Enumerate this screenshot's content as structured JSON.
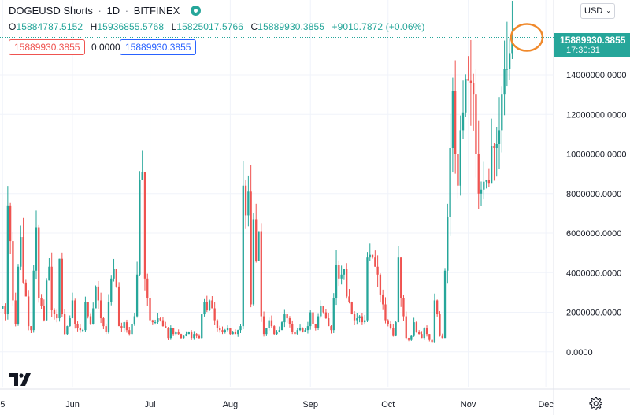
{
  "header": {
    "title": "DOGEUSD Shorts",
    "interval": "1D",
    "exchange": "BITFINEX",
    "sep": "·"
  },
  "ohlc": {
    "o_key": "O",
    "o_val": "15884787.5152",
    "h_key": "H",
    "h_val": "15936855.5768",
    "l_key": "L",
    "l_val": "15825017.5766",
    "c_key": "C",
    "c_val": "15889930.3855",
    "change": "+9010.7872 (+0.06%)"
  },
  "badges": {
    "red_value": "15889930.3855",
    "zero_value": "0.0000",
    "blue_value": "15889930.3855"
  },
  "currency": {
    "label": "USD",
    "chevron": "⌄"
  },
  "last_price": {
    "price": "15889930.3855",
    "countdown": "17:30:31"
  },
  "colors": {
    "up": "#26a69a",
    "down": "#ef5350",
    "highlight_circle": "#f0892b",
    "grid": "#f0f3fa"
  },
  "icons": {
    "logo": "tradingview-logo-icon",
    "settings": "gear-icon",
    "live": "live-status-icon"
  },
  "chart_data": {
    "type": "candlestick",
    "title": "DOGEUSD Shorts",
    "y_axis": {
      "ticks": [
        0,
        2000000,
        4000000,
        6000000,
        8000000,
        10000000,
        12000000,
        14000000
      ],
      "tick_labels": [
        "0.0000",
        "2000000.0000",
        "4000000.0000",
        "6000000.0000",
        "8000000.0000",
        "10000000.0000",
        "12000000.0000",
        "14000000.0000"
      ],
      "range": [
        -1800000,
        16350000
      ]
    },
    "x_axis": {
      "ticks": [
        {
          "label": "5",
          "date": "2021-05-05"
        },
        {
          "label": "Jun",
          "date": "2021-06-01"
        },
        {
          "label": "Jul",
          "date": "2021-07-01"
        },
        {
          "label": "Aug",
          "date": "2021-08-01"
        },
        {
          "label": "Sep",
          "date": "2021-09-01"
        },
        {
          "label": "Oct",
          "date": "2021-10-01"
        },
        {
          "label": "Nov",
          "date": "2021-11-01"
        },
        {
          "label": "Dec",
          "date": "2021-12-01"
        }
      ],
      "range": [
        "2021-05-04",
        "2021-12-04"
      ]
    },
    "last_close": 15889930.3855,
    "grid": true,
    "series_approx": {
      "note": "approximate daily closes read off chart",
      "start_date": "2021-05-05",
      "closes": [
        2300000,
        1900000,
        7400000,
        5600000,
        2600000,
        1400000,
        4300000,
        5800000,
        3500000,
        2800000,
        1300000,
        1100000,
        4100000,
        6300000,
        2700000,
        2300000,
        1600000,
        3600000,
        4300000,
        2100000,
        1900000,
        1700000,
        4700000,
        1900000,
        900000,
        1300000,
        1700000,
        2600000,
        1400000,
        1200000,
        1100000,
        1100000,
        2500000,
        1800000,
        1400000,
        2200000,
        3300000,
        2600000,
        1700000,
        1300000,
        1000000,
        2500000,
        3700000,
        4200000,
        3300000,
        1300000,
        1200000,
        1500000,
        1100000,
        900000,
        1400000,
        1800000,
        3900000,
        8700000,
        9100000,
        3700000,
        2700000,
        1600000,
        1500000,
        1500000,
        1700000,
        1600000,
        1300000,
        1200000,
        700000,
        1200000,
        900000,
        1000000,
        900000,
        700000,
        800000,
        900000,
        1000000,
        700000,
        900000,
        800000,
        700000,
        1900000,
        2500000,
        2100000,
        2600000,
        2200000,
        1600000,
        1200000,
        1100000,
        1000000,
        1100000,
        1200000,
        900000,
        1000000,
        900000,
        1100000,
        1300000,
        8400000,
        6900000,
        8100000,
        2400000,
        6700000,
        4600000,
        6100000,
        1800000,
        900000,
        1200000,
        1600000,
        1300000,
        900000,
        1000000,
        1100000,
        1500000,
        1900000,
        1700000,
        1400000,
        1000000,
        900000,
        1100000,
        1200000,
        1000000,
        1100000,
        1300000,
        2000000,
        1400000,
        1200000,
        1800000,
        2300000,
        2000000,
        1700000,
        1300000,
        1100000,
        2700000,
        4400000,
        3700000,
        3900000,
        4200000,
        2800000,
        2500000,
        1900000,
        1600000,
        1700000,
        1800000,
        1500000,
        1600000,
        4800000,
        4900000,
        4800000,
        4300000,
        3900000,
        2900000,
        2400000,
        1600000,
        1400000,
        1200000,
        800000,
        1500000,
        4800000,
        2700000,
        1800000,
        700000,
        600000,
        800000,
        1500000,
        1000000,
        900000,
        700000,
        1200000,
        900000,
        600000,
        500000,
        2600000,
        1900000,
        800000,
        700000,
        4100000,
        6800000,
        10300000,
        13200000,
        10000000,
        8400000,
        11200000,
        12100000,
        13800000,
        13700000,
        13600000,
        13000000,
        10000000,
        8000000,
        8200000,
        8600000,
        8700000,
        8500000,
        10400000,
        10300000,
        10500000,
        11200000,
        13000000,
        14300000,
        14300000,
        15100000,
        15889930
      ]
    }
  }
}
